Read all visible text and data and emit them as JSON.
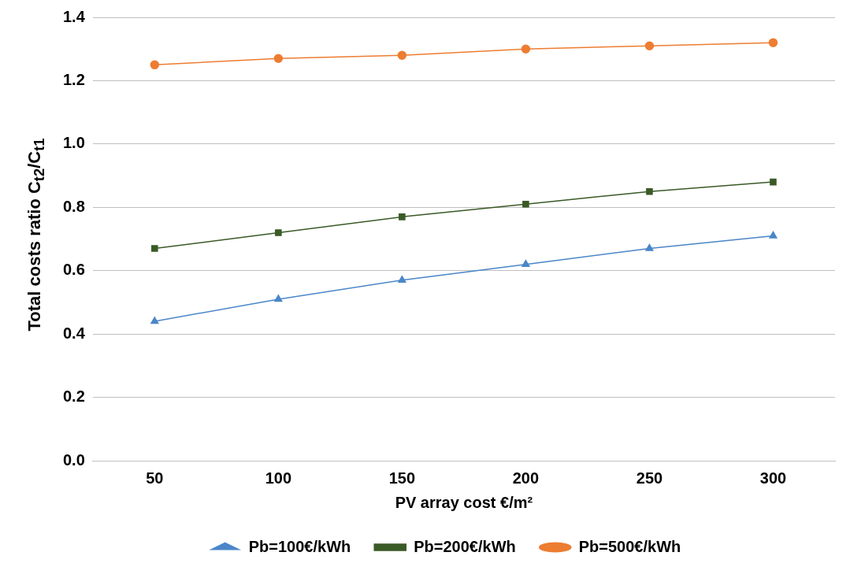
{
  "chart_data": {
    "type": "line",
    "xlabel": "PV array cost €/m²",
    "ylabel": "Total costs ratio C$_{t2}$/C$_{t1}$",
    "categories": [
      "50",
      "100",
      "150",
      "200",
      "250",
      "300"
    ],
    "series": [
      {
        "name": "Pb=100€/kWh",
        "color": "#4a86c8",
        "marker": "triangle",
        "values": [
          0.44,
          0.51,
          0.57,
          0.62,
          0.67,
          0.71
        ]
      },
      {
        "name": "Pb=200€/kWh",
        "color": "#3a5a26",
        "marker": "square",
        "values": [
          0.67,
          0.72,
          0.77,
          0.81,
          0.85,
          0.88
        ]
      },
      {
        "name": "Pb=500€/kWh",
        "color": "#ed7d31",
        "marker": "circle",
        "values": [
          1.25,
          1.27,
          1.28,
          1.3,
          1.31,
          1.32
        ]
      }
    ],
    "ylim": [
      0,
      1.4
    ],
    "yticks": [
      {
        "value": 0,
        "label": "0.0"
      },
      {
        "value": 0.2,
        "label": "0.2"
      },
      {
        "value": 0.4,
        "label": "0.4"
      },
      {
        "value": 0.6,
        "label": "0.6"
      },
      {
        "value": 0.8,
        "label": "0.8"
      },
      {
        "value": 1,
        "label": "1.0"
      },
      {
        "value": 1.2,
        "label": "1.2"
      },
      {
        "value": 1.4,
        "label": "1.4"
      }
    ],
    "grid": "y",
    "legend": "bottom",
    "line_style": "solid"
  }
}
